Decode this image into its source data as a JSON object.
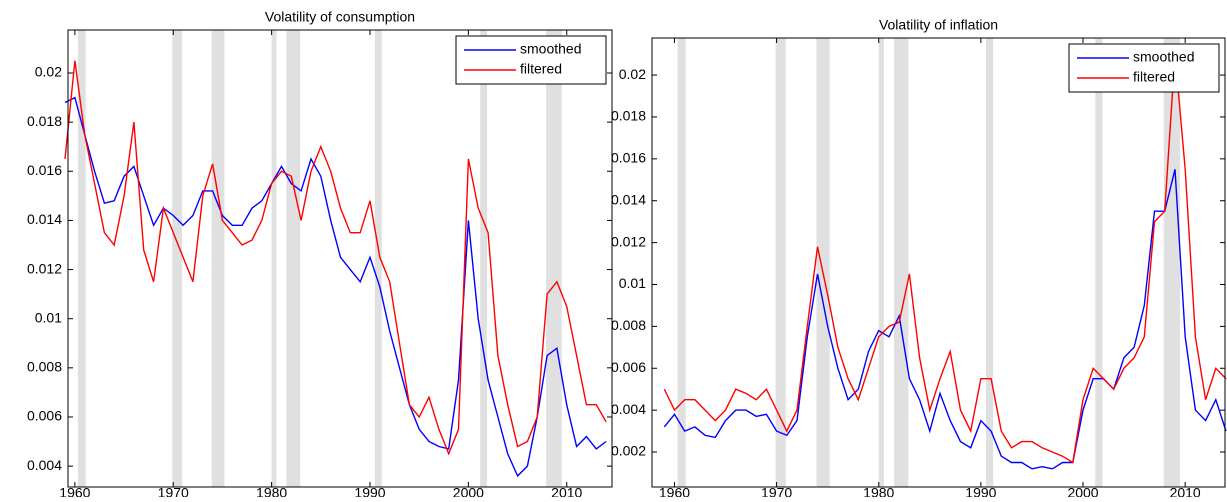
{
  "chart_data": [
    {
      "type": "line",
      "title": "Volatility of consumption",
      "x": [
        1959,
        1960,
        1961,
        1962,
        1963,
        1964,
        1965,
        1966,
        1967,
        1968,
        1969,
        1970,
        1971,
        1972,
        1973,
        1974,
        1975,
        1976,
        1977,
        1978,
        1979,
        1980,
        1981,
        1982,
        1983,
        1984,
        1985,
        1986,
        1987,
        1988,
        1989,
        1990,
        1991,
        1992,
        1993,
        1994,
        1995,
        1996,
        1997,
        1998,
        1999,
        2000,
        2001,
        2002,
        2003,
        2004,
        2005,
        2006,
        2007,
        2008,
        2009,
        2010,
        2011,
        2012,
        2013,
        2014
      ],
      "series": [
        {
          "name": "smoothed",
          "color": "#0000ff",
          "values": [
            0.0188,
            0.019,
            0.0175,
            0.016,
            0.0147,
            0.0148,
            0.0158,
            0.0162,
            0.015,
            0.0138,
            0.0145,
            0.0142,
            0.0138,
            0.0142,
            0.0152,
            0.0152,
            0.0142,
            0.0138,
            0.0138,
            0.0145,
            0.0148,
            0.0155,
            0.0162,
            0.0155,
            0.0152,
            0.0165,
            0.0158,
            0.014,
            0.0125,
            0.012,
            0.0115,
            0.0125,
            0.0113,
            0.0095,
            0.008,
            0.0065,
            0.0055,
            0.005,
            0.0048,
            0.0047,
            0.0075,
            0.014,
            0.01,
            0.0075,
            0.006,
            0.0045,
            0.0036,
            0.004,
            0.006,
            0.0085,
            0.0088,
            0.0065,
            0.0048,
            0.0052,
            0.0047,
            0.005
          ]
        },
        {
          "name": "filtered",
          "color": "#ff0000",
          "values": [
            0.0165,
            0.0205,
            0.0175,
            0.0155,
            0.0135,
            0.013,
            0.015,
            0.018,
            0.0128,
            0.0115,
            0.0145,
            0.0135,
            0.0125,
            0.0115,
            0.015,
            0.0163,
            0.014,
            0.0135,
            0.013,
            0.0132,
            0.014,
            0.0155,
            0.016,
            0.0158,
            0.014,
            0.016,
            0.017,
            0.016,
            0.0145,
            0.0135,
            0.0135,
            0.0148,
            0.0125,
            0.0115,
            0.009,
            0.0065,
            0.006,
            0.0068,
            0.0055,
            0.0045,
            0.0055,
            0.0165,
            0.0145,
            0.0135,
            0.0085,
            0.0065,
            0.0048,
            0.005,
            0.006,
            0.011,
            0.0115,
            0.0105,
            0.0085,
            0.0065,
            0.0065,
            0.0058
          ]
        }
      ],
      "recessions": [
        [
          1960.3,
          1961.1
        ],
        [
          1969.9,
          1970.9
        ],
        [
          1973.9,
          1975.2
        ],
        [
          1980.0,
          1980.5
        ],
        [
          1981.5,
          1982.9
        ],
        [
          1990.5,
          1991.2
        ],
        [
          2001.2,
          2001.9
        ],
        [
          2007.9,
          2009.5
        ]
      ],
      "recession_color": "#e0e0e0",
      "xlim": [
        1959.3,
        2014.6
      ],
      "xticks": [
        1960,
        1970,
        1980,
        1990,
        2000,
        2010
      ],
      "ylim": [
        0.00315,
        0.02175
      ],
      "yticks": [
        0.004,
        0.006,
        0.008,
        0.01,
        0.012,
        0.014,
        0.016,
        0.018,
        0.02
      ],
      "legend": "upper right"
    },
    {
      "type": "line",
      "title": "Volatility of inflation",
      "x": [
        1959,
        1960,
        1961,
        1962,
        1963,
        1964,
        1965,
        1966,
        1967,
        1968,
        1969,
        1970,
        1971,
        1972,
        1973,
        1974,
        1975,
        1976,
        1977,
        1978,
        1979,
        1980,
        1981,
        1982,
        1983,
        1984,
        1985,
        1986,
        1987,
        1988,
        1989,
        1990,
        1991,
        1992,
        1993,
        1994,
        1995,
        1996,
        1997,
        1998,
        1999,
        2000,
        2001,
        2002,
        2003,
        2004,
        2005,
        2006,
        2007,
        2008,
        2009,
        2010,
        2011,
        2012,
        2013,
        2014
      ],
      "series": [
        {
          "name": "smoothed",
          "color": "#0000ff",
          "values": [
            0.0032,
            0.0038,
            0.003,
            0.0032,
            0.0028,
            0.0027,
            0.0035,
            0.004,
            0.004,
            0.0037,
            0.0038,
            0.003,
            0.0028,
            0.0035,
            0.0075,
            0.0105,
            0.008,
            0.006,
            0.0045,
            0.005,
            0.0068,
            0.0078,
            0.0075,
            0.0085,
            0.0055,
            0.0045,
            0.003,
            0.0048,
            0.0035,
            0.0025,
            0.0022,
            0.0035,
            0.003,
            0.0018,
            0.0015,
            0.0015,
            0.0012,
            0.0013,
            0.0012,
            0.0015,
            0.0015,
            0.004,
            0.0055,
            0.0055,
            0.005,
            0.0065,
            0.007,
            0.009,
            0.0135,
            0.0135,
            0.0155,
            0.0075,
            0.004,
            0.0035,
            0.0045,
            0.003
          ]
        },
        {
          "name": "filtered",
          "color": "#ff0000",
          "values": [
            0.005,
            0.004,
            0.0045,
            0.0045,
            0.004,
            0.0035,
            0.004,
            0.005,
            0.0048,
            0.0045,
            0.005,
            0.004,
            0.003,
            0.004,
            0.008,
            0.0118,
            0.0095,
            0.007,
            0.0055,
            0.0045,
            0.006,
            0.0075,
            0.008,
            0.0082,
            0.0105,
            0.0065,
            0.004,
            0.0055,
            0.0068,
            0.004,
            0.003,
            0.0055,
            0.0055,
            0.003,
            0.0022,
            0.0025,
            0.0025,
            0.0022,
            0.002,
            0.0018,
            0.0015,
            0.0045,
            0.006,
            0.0055,
            0.005,
            0.006,
            0.0065,
            0.0075,
            0.013,
            0.0135,
            0.021,
            0.0155,
            0.0075,
            0.0045,
            0.006,
            0.0055
          ]
        }
      ],
      "recessions": [
        [
          1960.3,
          1961.1
        ],
        [
          1969.9,
          1970.9
        ],
        [
          1973.9,
          1975.2
        ],
        [
          1980.0,
          1980.5
        ],
        [
          1981.5,
          1982.9
        ],
        [
          1990.5,
          1991.2
        ],
        [
          2001.2,
          2001.9
        ],
        [
          2007.9,
          2009.5
        ]
      ],
      "recession_color": "#e0e0e0",
      "xlim": [
        1957.8,
        2013.9
      ],
      "xticks": [
        1960,
        1970,
        1980,
        1990,
        2000,
        2010
      ],
      "ylim": [
        0.00033,
        0.02177
      ],
      "yticks": [
        0.002,
        0.004,
        0.006,
        0.008,
        0.01,
        0.012,
        0.014,
        0.016,
        0.018,
        0.02
      ],
      "legend": "upper right"
    }
  ]
}
